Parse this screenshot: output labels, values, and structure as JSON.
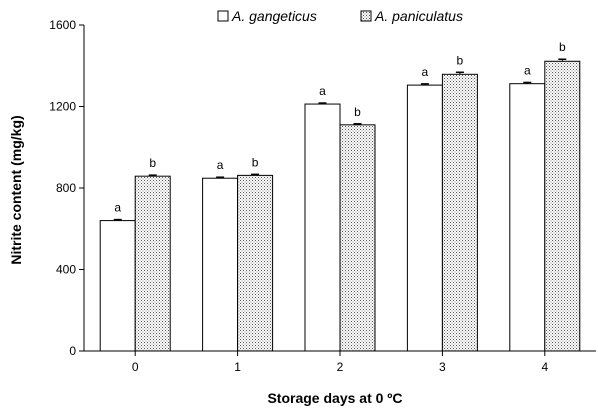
{
  "chart_data": {
    "type": "bar",
    "categories": [
      "0",
      "1",
      "2",
      "3",
      "4"
    ],
    "series": [
      {
        "name": "A. gangeticus",
        "values": [
          640,
          848,
          1212,
          1305,
          1312
        ],
        "errors": [
          5,
          5,
          5,
          6,
          6
        ],
        "labels": [
          "a",
          "a",
          "a",
          "a",
          "a"
        ],
        "fill": "white"
      },
      {
        "name": "A. paniculatus",
        "values": [
          858,
          862,
          1110,
          1358,
          1422
        ],
        "errors": [
          5,
          5,
          5,
          10,
          10
        ],
        "labels": [
          "b",
          "b",
          "b",
          "b",
          "b"
        ],
        "fill": "stippled"
      }
    ],
    "xlabel": "Storage days at 0 ºC",
    "ylabel": "Nitrite content (mg/kg)",
    "ylim": [
      0,
      1600
    ],
    "yticks": [
      0,
      400,
      800,
      1200,
      1600
    ],
    "grid": false,
    "legend_position": "top-center"
  }
}
